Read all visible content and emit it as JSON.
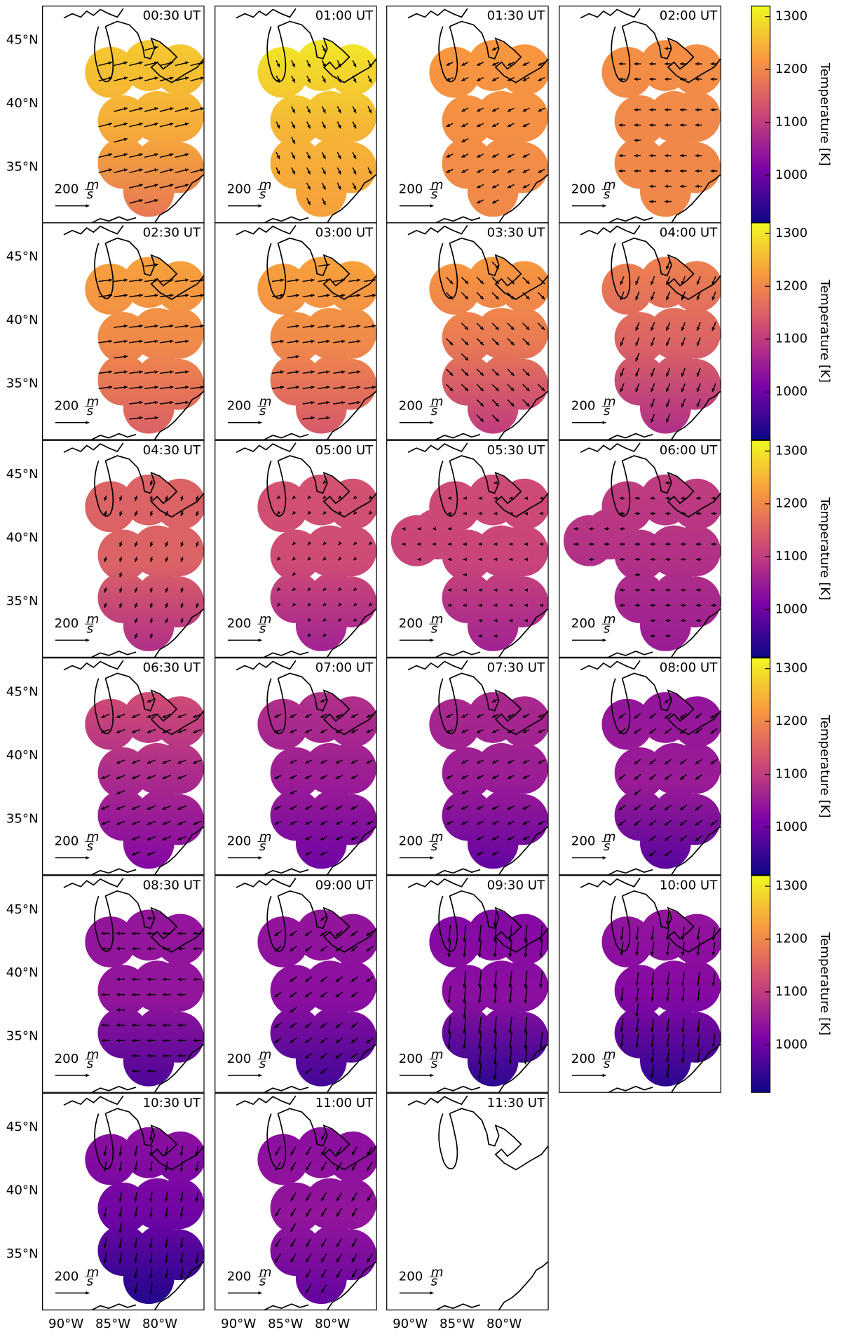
{
  "chart_data": {
    "type": "map",
    "xlim": [
      -92.5,
      -75.3
    ],
    "ylim": [
      30.6,
      47.7
    ],
    "xticks": [
      {
        "value": -90,
        "label": "90°W"
      },
      {
        "value": -85,
        "label": "85°W"
      },
      {
        "value": -80,
        "label": "80°W"
      }
    ],
    "yticks": [
      {
        "value": 35,
        "label": "35°N"
      },
      {
        "value": 40,
        "label": "40°N"
      },
      {
        "value": 45,
        "label": "45°N"
      }
    ],
    "arrow_scale": 200,
    "arrow_unit_numerator": "m",
    "arrow_unit_denominator": "s",
    "colorbar": {
      "label": "Temperature [K]",
      "lim": [
        910,
        1320
      ],
      "ticks": [
        1000,
        1100,
        1200,
        1300
      ]
    },
    "panels": [
      {
        "title": "00:30 UT",
        "temperature": [
          1270,
          1240,
          1180
        ],
        "wind": [
          80,
          20
        ]
      },
      {
        "title": "01:00 UT",
        "temperature": [
          1300,
          1250,
          1230
        ],
        "wind": [
          20,
          -40
        ]
      },
      {
        "title": "01:30 UT",
        "temperature": [
          1220,
          1210,
          1200
        ],
        "wind": [
          -40,
          -20
        ]
      },
      {
        "title": "02:00 UT",
        "temperature": [
          1210,
          1200,
          1200
        ],
        "wind": [
          -40,
          0
        ]
      },
      {
        "title": "02:30 UT",
        "temperature": [
          1230,
          1200,
          1150
        ],
        "wind": [
          80,
          10
        ]
      },
      {
        "title": "03:00 UT",
        "temperature": [
          1230,
          1200,
          1140
        ],
        "wind": [
          70,
          10
        ]
      },
      {
        "title": "03:30 UT",
        "temperature": [
          1220,
          1180,
          1100
        ],
        "wind": [
          40,
          -40
        ]
      },
      {
        "title": "04:00 UT",
        "temperature": [
          1190,
          1150,
          1080
        ],
        "wind": [
          -20,
          -50
        ]
      },
      {
        "title": "04:30 UT",
        "temperature": [
          1150,
          1150,
          1080
        ],
        "wind": [
          -10,
          -30
        ]
      },
      {
        "title": "05:00 UT",
        "temperature": [
          1130,
          1120,
          1060
        ],
        "wind": [
          -10,
          -10
        ]
      },
      {
        "title": "05:30 UT",
        "temperature": [
          1120,
          1110,
          1060
        ],
        "wind": [
          -20,
          0
        ]
      },
      {
        "title": "06:00 UT",
        "temperature": [
          1100,
          1080,
          1050
        ],
        "wind": [
          -30,
          0
        ]
      },
      {
        "title": "06:30 UT",
        "temperature": [
          1120,
          1070,
          1020
        ],
        "wind": [
          -50,
          -20
        ]
      },
      {
        "title": "07:00 UT",
        "temperature": [
          1080,
          1050,
          1000
        ],
        "wind": [
          -40,
          -20
        ]
      },
      {
        "title": "07:30 UT",
        "temperature": [
          1070,
          1050,
          990
        ],
        "wind": [
          -40,
          -20
        ]
      },
      {
        "title": "08:00 UT",
        "temperature": [
          1040,
          1050,
          980
        ],
        "wind": [
          -40,
          -30
        ]
      },
      {
        "title": "08:30 UT",
        "temperature": [
          1040,
          1040,
          970
        ],
        "wind": [
          -50,
          0
        ]
      },
      {
        "title": "09:00 UT",
        "temperature": [
          1040,
          1030,
          960
        ],
        "wind": [
          -40,
          -30
        ]
      },
      {
        "title": "09:30 UT",
        "temperature": [
          1020,
          1030,
          940
        ],
        "wind": [
          -10,
          -100
        ]
      },
      {
        "title": "10:00 UT",
        "temperature": [
          1040,
          1020,
          940
        ],
        "wind": [
          -10,
          -80
        ]
      },
      {
        "title": "10:30 UT",
        "temperature": [
          1030,
          1000,
          930
        ],
        "wind": [
          -10,
          -60
        ]
      },
      {
        "title": "11:00 UT",
        "temperature": [
          1030,
          1040,
          990
        ],
        "wind": [
          -30,
          -50
        ]
      },
      {
        "title": "11:30 UT"
      }
    ]
  }
}
